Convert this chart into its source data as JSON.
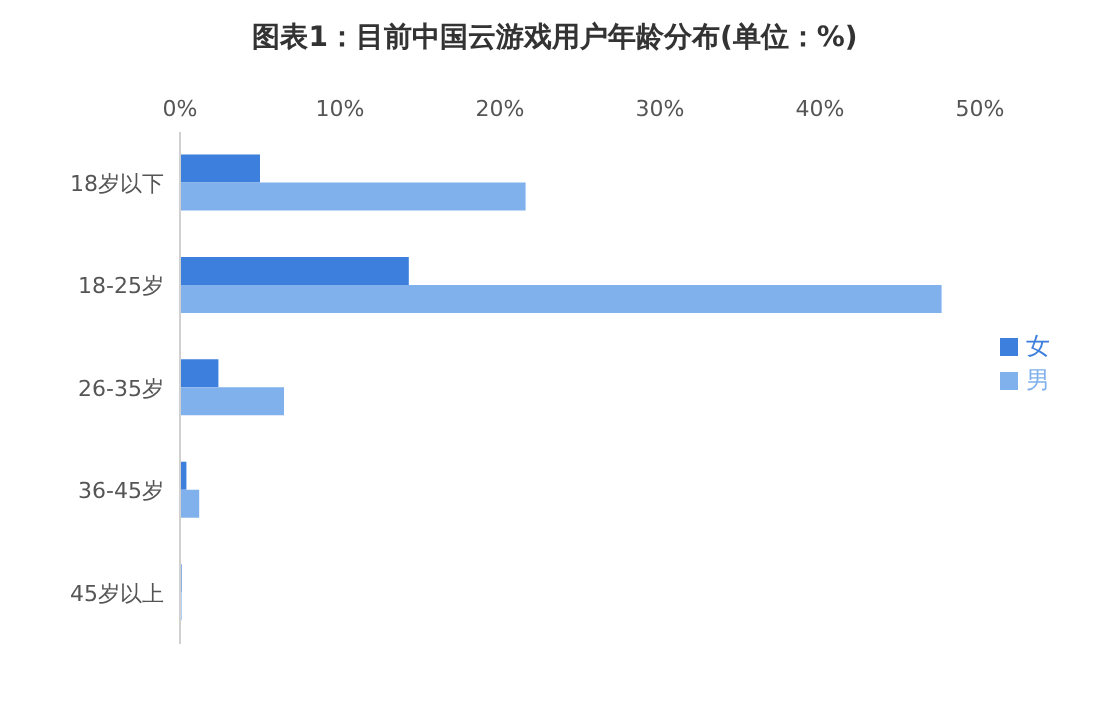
{
  "chart_data": {
    "type": "bar",
    "orientation": "horizontal",
    "title": "图表1：目前中国云游戏用户年龄分布(单位：%)",
    "categories": [
      "18岁以下",
      "18-25岁",
      "26-35岁",
      "36-45岁",
      "45岁以上"
    ],
    "series": [
      {
        "name": "女",
        "color": "#3d7fdc",
        "values": [
          5.0,
          14.3,
          2.4,
          0.4,
          0.1
        ]
      },
      {
        "name": "男",
        "color": "#80b1ec",
        "values": [
          21.6,
          47.6,
          6.5,
          1.2,
          0.1
        ]
      }
    ],
    "xlim": [
      0,
      50
    ],
    "xticks": [
      {
        "value": 0,
        "label": "0%"
      },
      {
        "value": 10,
        "label": "10%"
      },
      {
        "value": 20,
        "label": "20%"
      },
      {
        "value": 30,
        "label": "30%"
      },
      {
        "value": 40,
        "label": "40%"
      },
      {
        "value": 50,
        "label": "50%"
      }
    ],
    "grid": false,
    "legend": "right"
  }
}
